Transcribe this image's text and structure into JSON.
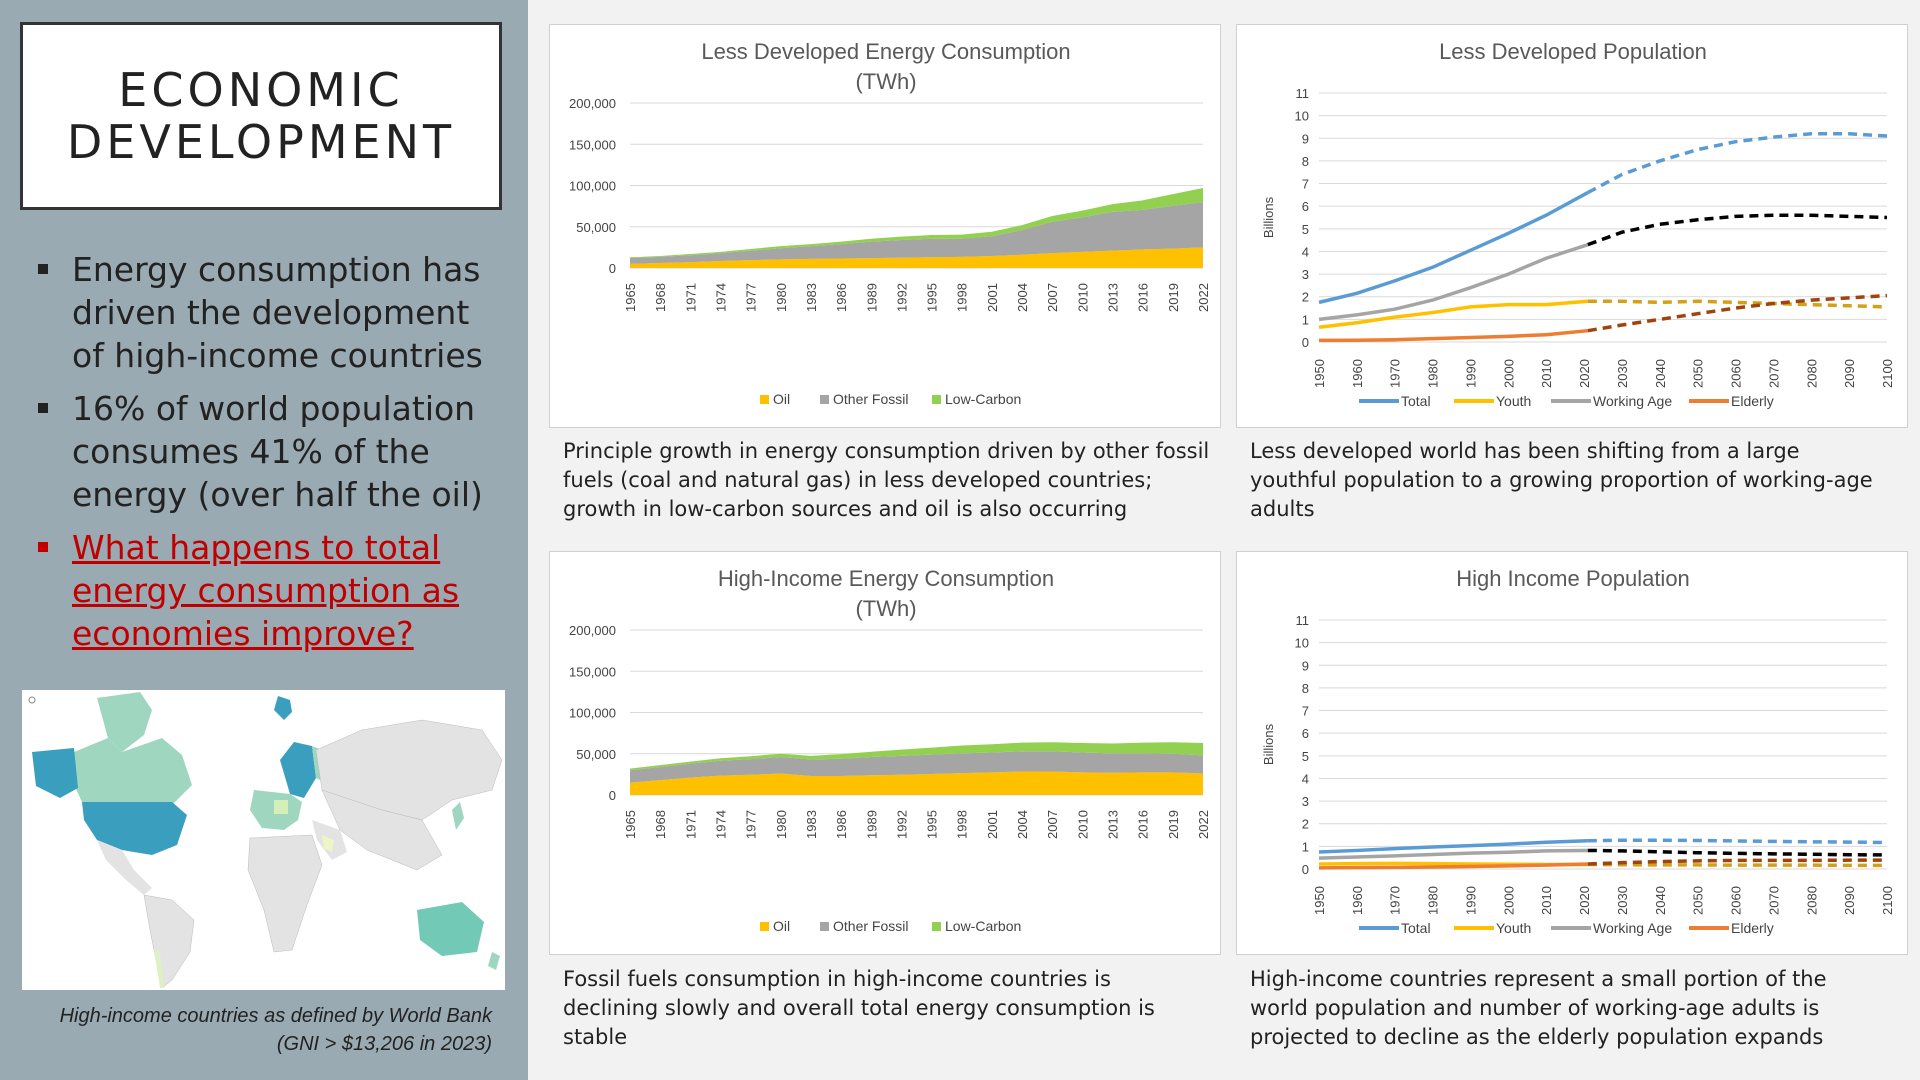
{
  "sidebar": {
    "title_line1": "ECONOMIC",
    "title_line2": "DEVELOPMENT",
    "bullets": [
      "Energy consumption has driven the development of high-income countries",
      "16% of world population consumes 41% of the energy (over half the oil)"
    ],
    "question": "What happens to total energy consumption as economies improve?",
    "map_caption_line1": "High-income countries as defined by World Bank",
    "map_caption_line2": "(GNI > $13,206 in 2023)"
  },
  "descriptions": {
    "ld_energy": "Principle growth in energy consumption driven by other fossil fuels (coal and natural gas) in less developed countries; growth in low-carbon sources and oil is also occurring",
    "ld_pop": "Less developed world has been shifting from a large youthful population to a growing proportion of working-age adults",
    "hi_energy": "Fossil fuels consumption in high-income countries is declining slowly and overall total energy consumption is stable",
    "hi_pop": "High-income countries represent a small portion of the world population and number of working-age adults is projected to decline as the elderly population expands"
  },
  "colors": {
    "oil": "#ffc000",
    "other_fossil": "#a5a5a5",
    "low_carbon": "#92d050",
    "total": "#5b9bd5",
    "youth": "#ffc000",
    "working_age": "#a5a5a5",
    "elderly": "#ed7d31"
  },
  "chart_data": [
    {
      "id": "ld_energy",
      "type": "area",
      "stacked": true,
      "title": "Less Developed Energy Consumption",
      "subtitle": "(TWh)",
      "x_ticks": [
        "1965",
        "1968",
        "1971",
        "1974",
        "1977",
        "1980",
        "1983",
        "1986",
        "1989",
        "1992",
        "1995",
        "1998",
        "2001",
        "2004",
        "2007",
        "2010",
        "2013",
        "2016",
        "2019",
        "2022"
      ],
      "y_ticks": [
        "0",
        "50,000",
        "100,000",
        "150,000",
        "200,000"
      ],
      "ylim": [
        0,
        200000
      ],
      "legend": [
        "Oil",
        "Other Fossil",
        "Low-Carbon"
      ],
      "series": [
        {
          "name": "Oil",
          "values": [
            5000,
            6000,
            7000,
            8500,
            9500,
            10500,
            11000,
            11500,
            12000,
            12500,
            13000,
            13500,
            14500,
            16000,
            18000,
            19500,
            21000,
            22500,
            23500,
            25000
          ]
        },
        {
          "name": "Other Fossil",
          "values": [
            7000,
            7500,
            8500,
            9500,
            11500,
            13500,
            15500,
            17500,
            20000,
            21500,
            22500,
            22000,
            24000,
            30000,
            38000,
            42000,
            47000,
            48000,
            52000,
            55000
          ]
        },
        {
          "name": "Low-Carbon",
          "values": [
            1000,
            1000,
            1500,
            1500,
            2000,
            2500,
            2500,
            3000,
            3500,
            4000,
            4500,
            5000,
            5500,
            6000,
            7000,
            8000,
            9500,
            11500,
            14000,
            17000
          ]
        }
      ]
    },
    {
      "id": "ld_pop",
      "type": "line",
      "title": "Less Developed Population",
      "ylabel": "Billions",
      "x_ticks": [
        "1950",
        "1960",
        "1970",
        "1980",
        "1990",
        "2000",
        "2010",
        "2020",
        "2030",
        "2040",
        "2050",
        "2060",
        "2070",
        "2080",
        "2090",
        "2100"
      ],
      "y_ticks": [
        "0",
        "1",
        "2",
        "3",
        "4",
        "5",
        "6",
        "7",
        "8",
        "9",
        "10",
        "11"
      ],
      "ylim": [
        0,
        11
      ],
      "projection_from": 2021,
      "legend": [
        "Total",
        "Youth",
        "Working Age",
        "Elderly"
      ],
      "x": [
        1950,
        1960,
        1970,
        1980,
        1990,
        2000,
        2010,
        2021,
        2030,
        2040,
        2050,
        2060,
        2070,
        2080,
        2090,
        2100
      ],
      "series": [
        {
          "name": "Total",
          "values": [
            1.75,
            2.15,
            2.7,
            3.3,
            4.05,
            4.8,
            5.6,
            6.6,
            7.4,
            8.0,
            8.5,
            8.85,
            9.05,
            9.2,
            9.2,
            9.1
          ]
        },
        {
          "name": "Youth",
          "values": [
            0.65,
            0.85,
            1.1,
            1.3,
            1.55,
            1.65,
            1.65,
            1.8,
            1.8,
            1.75,
            1.8,
            1.75,
            1.7,
            1.65,
            1.6,
            1.55
          ]
        },
        {
          "name": "Working Age",
          "values": [
            1.0,
            1.2,
            1.45,
            1.85,
            2.4,
            3.0,
            3.7,
            4.3,
            4.85,
            5.2,
            5.4,
            5.55,
            5.6,
            5.6,
            5.55,
            5.5
          ]
        },
        {
          "name": "Elderly",
          "values": [
            0.07,
            0.08,
            0.1,
            0.15,
            0.2,
            0.25,
            0.32,
            0.5,
            0.75,
            1.0,
            1.25,
            1.5,
            1.7,
            1.85,
            1.95,
            2.05
          ]
        }
      ]
    },
    {
      "id": "hi_energy",
      "type": "area",
      "stacked": true,
      "title": "High-Income Energy Consumption",
      "subtitle": "(TWh)",
      "x_ticks": [
        "1965",
        "1968",
        "1971",
        "1974",
        "1977",
        "1980",
        "1983",
        "1986",
        "1989",
        "1992",
        "1995",
        "1998",
        "2001",
        "2004",
        "2007",
        "2010",
        "2013",
        "2016",
        "2019",
        "2022"
      ],
      "y_ticks": [
        "0",
        "50,000",
        "100,000",
        "150,000",
        "200,000"
      ],
      "ylim": [
        0,
        200000
      ],
      "legend": [
        "Oil",
        "Other Fossil",
        "Low-Carbon"
      ],
      "series": [
        {
          "name": "Oil",
          "values": [
            15000,
            18000,
            21000,
            23500,
            24500,
            26000,
            23000,
            23000,
            24000,
            24500,
            25500,
            26500,
            27500,
            28500,
            28500,
            27500,
            27000,
            27500,
            27500,
            26000
          ]
        },
        {
          "name": "Other Fossil",
          "values": [
            15000,
            16000,
            17000,
            18000,
            19000,
            20000,
            20000,
            21000,
            22000,
            23000,
            23500,
            24000,
            24000,
            24500,
            24500,
            24000,
            23500,
            23000,
            22500,
            22000
          ]
        },
        {
          "name": "Low-Carbon",
          "values": [
            2000,
            2200,
            2500,
            3000,
            3500,
            4000,
            4500,
            5500,
            6500,
            7500,
            8500,
            9500,
            10000,
            10500,
            11000,
            11500,
            12000,
            13000,
            14000,
            15000
          ]
        }
      ]
    },
    {
      "id": "hi_pop",
      "type": "line",
      "title": "High Income Population",
      "ylabel": "Billions",
      "x_ticks": [
        "1950",
        "1960",
        "1970",
        "1980",
        "1990",
        "2000",
        "2010",
        "2020",
        "2030",
        "2040",
        "2050",
        "2060",
        "2070",
        "2080",
        "2090",
        "2100"
      ],
      "y_ticks": [
        "0",
        "1",
        "2",
        "3",
        "4",
        "5",
        "6",
        "7",
        "8",
        "9",
        "10",
        "11"
      ],
      "ylim": [
        0,
        11
      ],
      "projection_from": 2021,
      "legend": [
        "Total",
        "Youth",
        "Working Age",
        "Elderly"
      ],
      "x": [
        1950,
        1960,
        1970,
        1980,
        1990,
        2000,
        2010,
        2021,
        2030,
        2040,
        2050,
        2060,
        2070,
        2080,
        2090,
        2100
      ],
      "series": [
        {
          "name": "Total",
          "values": [
            0.75,
            0.82,
            0.9,
            0.97,
            1.03,
            1.1,
            1.18,
            1.25,
            1.27,
            1.27,
            1.26,
            1.24,
            1.22,
            1.2,
            1.19,
            1.17
          ]
        },
        {
          "name": "Youth",
          "values": [
            0.22,
            0.24,
            0.25,
            0.24,
            0.22,
            0.21,
            0.2,
            0.2,
            0.19,
            0.18,
            0.18,
            0.17,
            0.17,
            0.17,
            0.16,
            0.16
          ]
        },
        {
          "name": "Working Age",
          "values": [
            0.48,
            0.53,
            0.58,
            0.64,
            0.7,
            0.74,
            0.8,
            0.82,
            0.8,
            0.76,
            0.72,
            0.69,
            0.67,
            0.65,
            0.63,
            0.62
          ]
        },
        {
          "name": "Elderly",
          "values": [
            0.05,
            0.06,
            0.07,
            0.09,
            0.11,
            0.14,
            0.17,
            0.22,
            0.28,
            0.33,
            0.36,
            0.38,
            0.38,
            0.38,
            0.39,
            0.39
          ]
        }
      ]
    }
  ]
}
